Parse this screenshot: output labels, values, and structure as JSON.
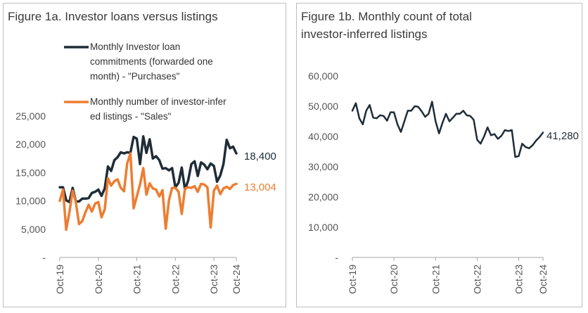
{
  "panels": {
    "a": {
      "title": "Figure 1a. Investor loans versus listings"
    },
    "b": {
      "title": "Figure 1b. Monthly count of total investor-inferred listings"
    }
  },
  "colors": {
    "dark": "#1f2d38",
    "orange": "#ed7d31"
  },
  "chart_data": [
    {
      "type": "line",
      "title": "Figure 1a. Investor loans versus listings",
      "x_start": "Oct-19",
      "x_ticks": [
        "Oct-19",
        "Oct-20",
        "Oct-21",
        "Oct-22",
        "Oct-23",
        "Oct-24"
      ],
      "y_ticks": [
        "-",
        "5,000",
        "10,000",
        "15,000",
        "20,000",
        "25,000"
      ],
      "ylim": [
        0,
        25000
      ],
      "legend_position": "top",
      "grid": false,
      "series": [
        {
          "name": "Monthly Investor loan commitments (forwarded one month) - \"Purchases\"",
          "color": "#1f2d38",
          "end_label": "18,400",
          "values": [
            12400,
            12400,
            10100,
            9800,
            12300,
            9900,
            9900,
            10400,
            10400,
            10500,
            11400,
            11600,
            12000,
            10900,
            12200,
            16100,
            15300,
            17200,
            17700,
            18600,
            18400,
            18600,
            18500,
            21300,
            21000,
            16500,
            21400,
            18500,
            20900,
            17500,
            17900,
            17200,
            15700,
            15800,
            15400,
            15800,
            12400,
            13200,
            15900,
            12000,
            13600,
            16500,
            17000,
            14400,
            16800,
            16400,
            15600,
            16600,
            16200,
            13400,
            14500,
            16500,
            20800,
            19300,
            19600,
            18400
          ]
        },
        {
          "name": "Monthly number of investor-inferred listings - \"Sales\"",
          "color": "#ed7d31",
          "end_label": "13,004",
          "values": [
            10000,
            12000,
            4900,
            8000,
            11800,
            9800,
            5900,
            6400,
            8000,
            9300,
            8100,
            9500,
            9800,
            7100,
            8500,
            14000,
            12700,
            13500,
            13800,
            12300,
            11700,
            16600,
            18400,
            8700,
            10800,
            12900,
            15800,
            11100,
            13100,
            12200,
            12000,
            10800,
            11900,
            5100,
            10100,
            12300,
            12300,
            11600,
            7700,
            12200,
            12400,
            12300,
            12600,
            11600,
            13000,
            12900,
            12400,
            5300,
            11800,
            12700,
            11200,
            12200,
            12500,
            12100,
            12800,
            13004
          ]
        }
      ]
    },
    {
      "type": "line",
      "title": "Figure 1b. Monthly count of total investor-inferred listings",
      "x_start": "Oct-19",
      "x_ticks": [
        "Oct-19",
        "Oct-20",
        "Oct-21",
        "Oct-22",
        "Oct-23",
        "Oct-24"
      ],
      "y_ticks": [
        "-",
        "10,000",
        "20,000",
        "30,000",
        "40,000",
        "50,000",
        "60,000"
      ],
      "ylim": [
        0,
        60000
      ],
      "grid": false,
      "series": [
        {
          "color": "#1f2d38",
          "end_label": "41,280",
          "values": [
            48500,
            51000,
            46000,
            44000,
            48500,
            50400,
            46200,
            46000,
            47000,
            46800,
            45200,
            48000,
            48000,
            44000,
            41500,
            45000,
            48500,
            48500,
            50000,
            49800,
            48300,
            46500,
            47500,
            51500,
            45000,
            41000,
            44500,
            47500,
            45000,
            46200,
            47500,
            47500,
            48500,
            47000,
            46800,
            45500,
            38900,
            37600,
            40000,
            43000,
            40400,
            40800,
            39200,
            40200,
            42100,
            41800,
            42100,
            33200,
            33500,
            37600,
            36500,
            36100,
            37100,
            38600,
            39800,
            41280
          ]
        }
      ]
    }
  ]
}
